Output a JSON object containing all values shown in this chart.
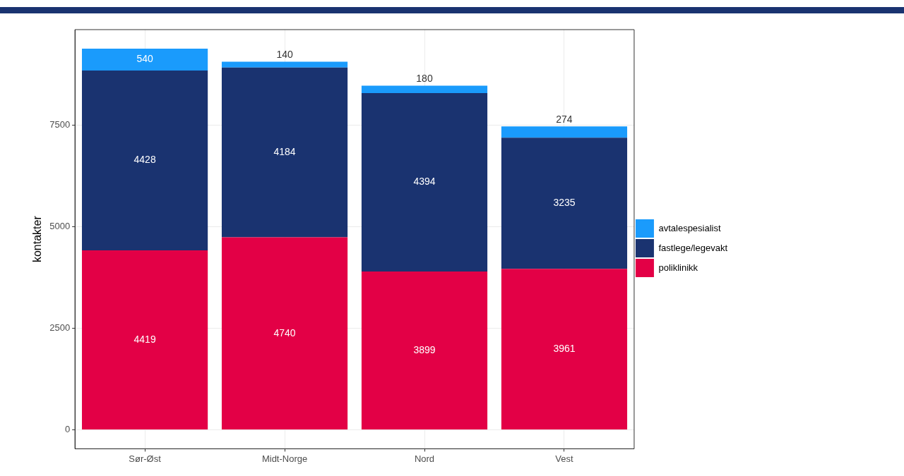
{
  "chart_data": {
    "type": "bar",
    "stacked": true,
    "ylabel": "kontakter",
    "categories": [
      "Sør-Øst",
      "Midt-Norge",
      "Nord",
      "Vest"
    ],
    "series": [
      {
        "name": "poliklinikk",
        "color": "#e30046",
        "values": [
          4419,
          4740,
          3899,
          3961
        ]
      },
      {
        "name": "fastlege/legevakt",
        "color": "#1a3370",
        "values": [
          4428,
          4184,
          4394,
          3235
        ]
      },
      {
        "name": "avtalespesialist",
        "color": "#1a9bfc",
        "values": [
          540,
          140,
          180,
          274
        ]
      }
    ],
    "ylim": [
      -469,
      9856
    ],
    "yticks": [
      0,
      2500,
      5000,
      7500
    ],
    "grid": true,
    "legend": "right",
    "data_labels": true
  }
}
